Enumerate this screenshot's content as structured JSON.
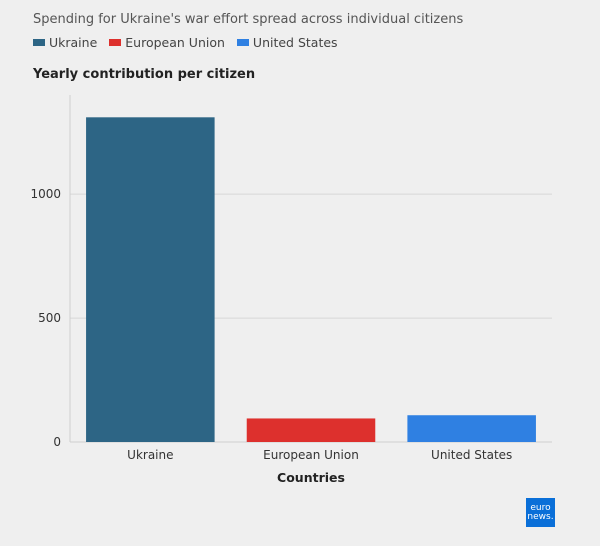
{
  "subtitle": "Spending for Ukraine's war effort spread across individual citizens",
  "legend": [
    {
      "label": "Ukraine",
      "color": "#2d6585"
    },
    {
      "label": "European Union",
      "color": "#dd302d"
    },
    {
      "label": "United States",
      "color": "#2f80e2"
    }
  ],
  "chart_data": {
    "type": "bar",
    "title": "Yearly contribution per citizen",
    "xlabel": "Countries",
    "ylabel": "",
    "categories": [
      "Ukraine",
      "European Union",
      "United States"
    ],
    "values": [
      1310,
      95,
      108
    ],
    "colors": [
      "#2d6585",
      "#dd302d",
      "#2f80e2"
    ],
    "ylim": [
      0,
      1400
    ],
    "yticks": [
      0,
      500,
      1000
    ],
    "grid": true
  },
  "logo": {
    "line1": "euro",
    "line2": "news."
  }
}
